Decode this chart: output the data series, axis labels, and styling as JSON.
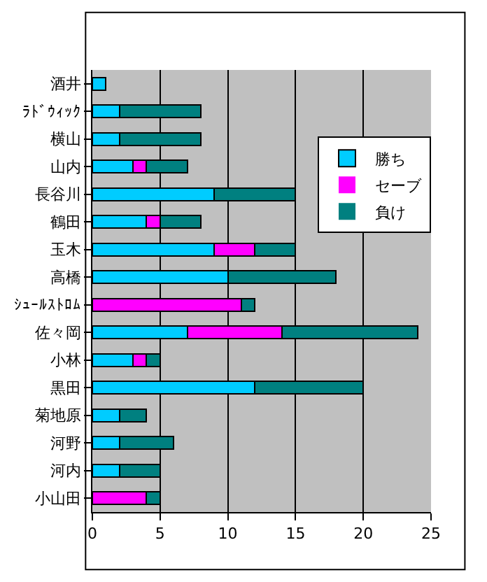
{
  "chart_data": {
    "type": "bar",
    "orientation": "horizontal",
    "stacked": true,
    "categories": [
      "酒井",
      "ﾗﾄﾞｳｨｯｸ",
      "横山",
      "山内",
      "長谷川",
      "鶴田",
      "玉木",
      "高橋",
      "ｼｭｰﾙｽﾄﾛﾑ",
      "佐々岡",
      "小林",
      "黒田",
      "菊地原",
      "河野",
      "河内",
      "小山田"
    ],
    "series": [
      {
        "name": "勝ち",
        "color": "#00ccff",
        "values": [
          1,
          2,
          2,
          3,
          9,
          4,
          9,
          10,
          0,
          7,
          3,
          12,
          2,
          2,
          2,
          0
        ]
      },
      {
        "name": "セーブ",
        "color": "#ff00ff",
        "values": [
          0,
          0,
          0,
          1,
          0,
          1,
          3,
          0,
          11,
          7,
          1,
          0,
          0,
          0,
          0,
          4
        ]
      },
      {
        "name": "負け",
        "color": "#008080",
        "values": [
          0,
          6,
          6,
          3,
          6,
          3,
          3,
          8,
          1,
          10,
          1,
          8,
          2,
          4,
          3,
          1
        ]
      }
    ],
    "xlim": [
      0,
      25
    ],
    "xticks": [
      0,
      5,
      10,
      15,
      20,
      25
    ],
    "grid": "x",
    "legend": "right"
  }
}
